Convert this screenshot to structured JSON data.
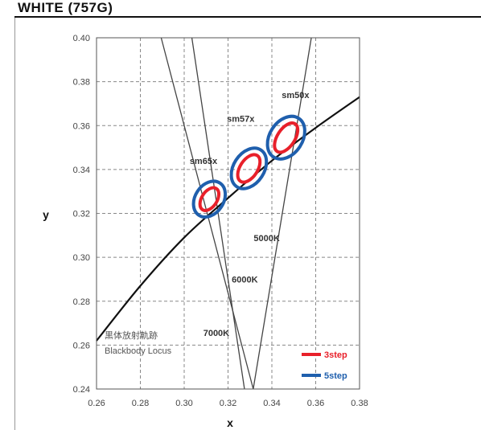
{
  "header": {
    "title": "WHITE (757G)"
  },
  "chart_data": {
    "type": "scatter",
    "xlabel": "x",
    "ylabel": "y",
    "xlim": [
      0.26,
      0.38
    ],
    "ylim": [
      0.24,
      0.4
    ],
    "x_ticks": [
      "0.26",
      "0.28",
      "0.30",
      "0.32",
      "0.34",
      "0.36",
      "0.38"
    ],
    "y_ticks": [
      "0.24",
      "0.26",
      "0.28",
      "0.30",
      "0.32",
      "0.34",
      "0.36",
      "0.38",
      "0.40"
    ],
    "grid": true,
    "blackbody_locus": {
      "label_ja": "黒体放射軌跡",
      "label_en": "Blackbody Locus",
      "points": [
        [
          0.26,
          0.262
        ],
        [
          0.28,
          0.287
        ],
        [
          0.3,
          0.309
        ],
        [
          0.32,
          0.327
        ],
        [
          0.34,
          0.344
        ],
        [
          0.36,
          0.359
        ],
        [
          0.38,
          0.373
        ]
      ]
    },
    "cct_lines": [
      {
        "label": "7000K",
        "p1": [
          0.2895,
          0.4
        ],
        "p2": [
          0.3315,
          0.24
        ]
      },
      {
        "label": "6000K",
        "p1": [
          0.3035,
          0.4
        ],
        "p2": [
          0.3275,
          0.24
        ]
      },
      {
        "label": "5000K",
        "p1": [
          0.358,
          0.4
        ],
        "p2": [
          0.3315,
          0.24
        ]
      }
    ],
    "bins": [
      {
        "label": "sm65x",
        "center": [
          0.3115,
          0.3265
        ],
        "rx3": 0.0035,
        "ry3": 0.0115,
        "rx5": 0.0065,
        "ry5": 0.0175,
        "angle": 33
      },
      {
        "label": "sm57x",
        "center": [
          0.3295,
          0.3405
        ],
        "rx3": 0.004,
        "ry3": 0.014,
        "rx5": 0.007,
        "ry5": 0.02,
        "angle": 33
      },
      {
        "label": "sm50x",
        "center": [
          0.3465,
          0.3545
        ],
        "rx3": 0.004,
        "ry3": 0.015,
        "rx5": 0.0075,
        "ry5": 0.021,
        "angle": 33
      }
    ],
    "legend": [
      {
        "label": "3step",
        "color": "#e8202a"
      },
      {
        "label": "5step",
        "color": "#1f5fad"
      }
    ],
    "legend_position": "bottom-right"
  },
  "colors": {
    "step3": "#e8202a",
    "step5": "#1f5fad",
    "locus": "#111111",
    "cct": "#444444",
    "grid": "#888888"
  }
}
